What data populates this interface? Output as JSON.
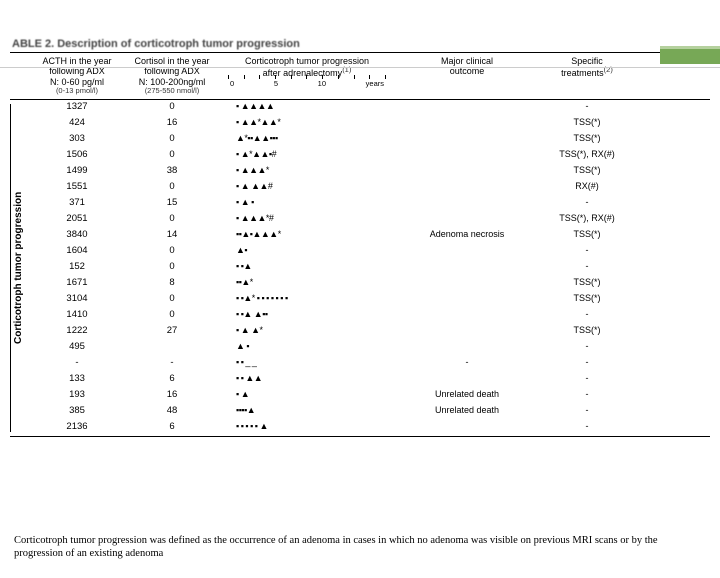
{
  "decor": {
    "accent": "#77a856",
    "accent_light": "#b5d19e"
  },
  "table": {
    "title": "ABLE 2. Description of corticotroph tumor progression",
    "columns": [
      {
        "h1": "ACTH in the year",
        "h2": "following ADX",
        "h3": "N: 0-60 pg/ml",
        "sub": "(0-13 pmol/l)"
      },
      {
        "h1": "Cortisol in the year",
        "h2": "following ADX",
        "h3": "N: 100-200ng/ml",
        "sub": "(275-550 nmol/l)"
      },
      {
        "h1": "Corticotroph tumor progression",
        "h2": "after adrenalectomy",
        "h3": "",
        "sub": "",
        "axis": [
          "0",
          "5",
          "10",
          "years"
        ]
      },
      {
        "h1": "Major clinical",
        "h2": "outcome",
        "h3": "",
        "sub": ""
      },
      {
        "h1": "Specific",
        "h2": "treatments",
        "h3": "",
        "sub": ""
      }
    ],
    "superscripts": {
      "c3": "(1)",
      "c5": "(2)"
    },
    "y_axis_label": "Corticotroph tumor progression",
    "rows": [
      {
        "acth": "1327",
        "cort": "0",
        "prog": "▪ ▲▲▲▲",
        "outcome": "",
        "treat": "-"
      },
      {
        "acth": "424",
        "cort": "16",
        "prog": "▪ ▲▲*▲▲*",
        "outcome": "",
        "treat": "TSS(*)"
      },
      {
        "acth": "303",
        "cort": "0",
        "prog": "▲*▪▪▲▲▪▪▪",
        "outcome": "",
        "treat": "TSS(*)"
      },
      {
        "acth": "1506",
        "cort": "0",
        "prog": "▪ ▲*▲▲▪#",
        "outcome": "",
        "treat": "TSS(*), RX(#)"
      },
      {
        "acth": "1499",
        "cort": "38",
        "prog": "▪ ▲▲▲*",
        "outcome": "",
        "treat": "TSS(*)"
      },
      {
        "acth": "1551",
        "cort": "0",
        "prog": "▪ ▲ ▲▲#",
        "outcome": "",
        "treat": "RX(#)"
      },
      {
        "acth": "371",
        "cort": "15",
        "prog": "▪ ▲  ▪",
        "outcome": "",
        "treat": "-"
      },
      {
        "acth": "2051",
        "cort": "0",
        "prog": "▪ ▲▲▲*#",
        "outcome": "",
        "treat": "TSS(*), RX(#)"
      },
      {
        "acth": "3840",
        "cort": "14",
        "prog": "▪▪▲▪▲▲▲*",
        "outcome": "Adenoma necrosis",
        "treat": "TSS(*)"
      },
      {
        "acth": "1604",
        "cort": "0",
        "prog": "▲▪",
        "outcome": "",
        "treat": "-"
      },
      {
        "acth": "152",
        "cort": "0",
        "prog": "▪ ▪▲",
        "outcome": "",
        "treat": "-"
      },
      {
        "acth": "1671",
        "cort": "8",
        "prog": "▪▪▲*",
        "outcome": "",
        "treat": "TSS(*)"
      },
      {
        "acth": "3104",
        "cort": "0",
        "prog": "▪ ▪▲*  ▪ ▪ ▪ ▪ ▪ ▪ ▪",
        "outcome": "",
        "treat": "TSS(*)"
      },
      {
        "acth": "1410",
        "cort": "0",
        "prog": "▪ ▪▲ ▲▪▪",
        "outcome": "",
        "treat": "-"
      },
      {
        "acth": "1222",
        "cort": "27",
        "prog": "▪ ▲ ▲*",
        "outcome": "",
        "treat": "TSS(*)"
      },
      {
        "acth": "495",
        "cort": "",
        "prog": "▲ ▪",
        "outcome": "",
        "treat": "-"
      },
      {
        "acth": "-",
        "cort": "-",
        "prog": "▪  ▪ _ _",
        "outcome": "-",
        "treat": "-"
      },
      {
        "acth": "133",
        "cort": "6",
        "prog": "▪ ▪ ▲▲",
        "outcome": "",
        "treat": "-"
      },
      {
        "acth": "193",
        "cort": "16",
        "prog": "▪  ▲",
        "outcome": "Unrelated death",
        "treat": "-"
      },
      {
        "acth": "385",
        "cort": "48",
        "prog": "▪▪▪▪▲",
        "outcome": "Unrelated death",
        "treat": "-"
      },
      {
        "acth": "2136",
        "cort": "6",
        "prog": "▪ ▪ ▪ ▪ ▪  ▲",
        "outcome": "",
        "treat": "-"
      }
    ]
  },
  "caption": "Corticotroph tumor progression was defined as the occurrence of an adenoma in cases in which no adenoma was visible on previous MRI scans or by the progression of an existing adenoma"
}
